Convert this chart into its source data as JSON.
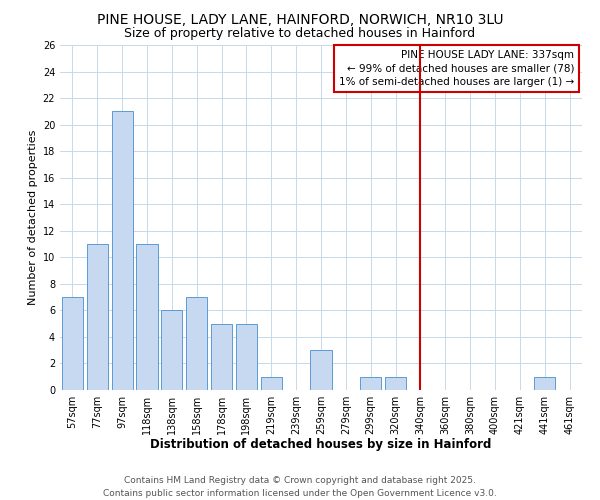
{
  "title": "PINE HOUSE, LADY LANE, HAINFORD, NORWICH, NR10 3LU",
  "subtitle": "Size of property relative to detached houses in Hainford",
  "xlabel": "Distribution of detached houses by size in Hainford",
  "ylabel": "Number of detached properties",
  "bar_labels": [
    "57sqm",
    "77sqm",
    "97sqm",
    "118sqm",
    "138sqm",
    "158sqm",
    "178sqm",
    "198sqm",
    "219sqm",
    "239sqm",
    "259sqm",
    "279sqm",
    "299sqm",
    "320sqm",
    "340sqm",
    "360sqm",
    "380sqm",
    "400sqm",
    "421sqm",
    "441sqm",
    "461sqm"
  ],
  "bar_values": [
    7,
    11,
    21,
    11,
    6,
    7,
    5,
    5,
    1,
    0,
    3,
    0,
    1,
    1,
    0,
    0,
    0,
    0,
    0,
    1,
    0
  ],
  "bar_color": "#c6d9f1",
  "bar_edge_color": "#5b9bd5",
  "vline_index": 14,
  "vline_color": "#cc0000",
  "annotation_title": "PINE HOUSE LADY LANE: 337sqm",
  "annotation_line1": "← 99% of detached houses are smaller (78)",
  "annotation_line2": "1% of semi-detached houses are larger (1) →",
  "ylim": [
    0,
    26
  ],
  "yticks": [
    0,
    2,
    4,
    6,
    8,
    10,
    12,
    14,
    16,
    18,
    20,
    22,
    24,
    26
  ],
  "footer1": "Contains HM Land Registry data © Crown copyright and database right 2025.",
  "footer2": "Contains public sector information licensed under the Open Government Licence v3.0.",
  "bg_color": "#ffffff",
  "grid_color": "#c8d8ec",
  "title_fontsize": 10,
  "subtitle_fontsize": 9,
  "axis_label_fontsize": 8.5,
  "ylabel_fontsize": 8,
  "tick_fontsize": 7,
  "footer_fontsize": 6.5,
  "annotation_fontsize": 7.5
}
